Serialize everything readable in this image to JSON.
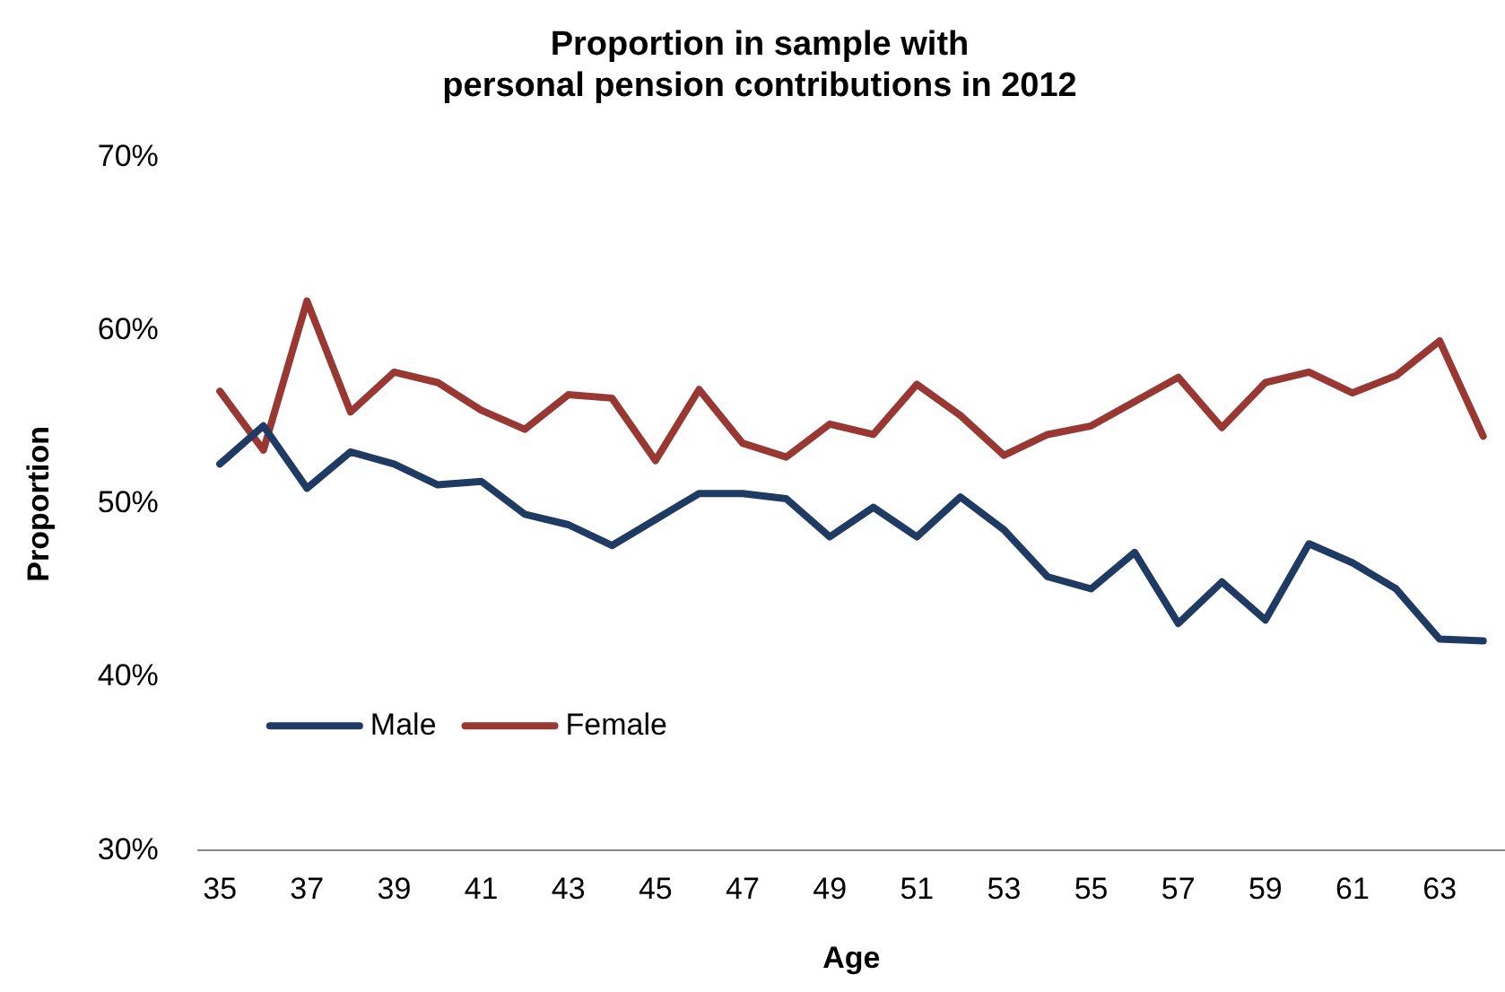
{
  "chart_data": {
    "type": "line",
    "title": "Proportion in sample with\npersonal pension contributions in 2012",
    "xlabel": "Age",
    "ylabel": "Proportion",
    "categories": [
      "35",
      null,
      "37",
      null,
      "39",
      null,
      "41",
      null,
      "43",
      null,
      "45",
      null,
      "47",
      null,
      "49",
      null,
      "51",
      null,
      "53",
      null,
      "55",
      null,
      "57",
      null,
      "59",
      null,
      "61",
      null,
      "63",
      null
    ],
    "series": [
      {
        "name": "Male",
        "color": "#1f3b63",
        "values": [
          52.3,
          54.5,
          50.9,
          53.0,
          52.3,
          51.1,
          51.3,
          49.4,
          48.8,
          47.6,
          49.1,
          50.6,
          50.6,
          50.3,
          48.1,
          49.8,
          48.1,
          50.4,
          48.5,
          45.8,
          45.1,
          47.2,
          43.1,
          45.5,
          43.3,
          47.7,
          46.6,
          45.1,
          42.2,
          42.1
        ]
      },
      {
        "name": "Female",
        "color": "#993833",
        "values": [
          56.5,
          53.1,
          61.7,
          55.3,
          57.6,
          57.0,
          55.4,
          54.3,
          56.3,
          56.1,
          52.5,
          56.6,
          53.5,
          52.7,
          54.6,
          54.0,
          56.9,
          55.1,
          52.8,
          54.0,
          54.5,
          55.9,
          57.3,
          54.4,
          57.0,
          57.6,
          56.4,
          57.4,
          59.4,
          53.9
        ]
      }
    ],
    "ylim": [
      30,
      70
    ],
    "yticks": [
      {
        "value": 30,
        "label": "30%"
      },
      {
        "value": 40,
        "label": "40%"
      },
      {
        "value": 50,
        "label": "50%"
      },
      {
        "value": 60,
        "label": "60%"
      },
      {
        "value": 70,
        "label": "70%"
      }
    ],
    "grid": false,
    "legend": "bottom left",
    "marker": "none",
    "line_style": "solid"
  }
}
